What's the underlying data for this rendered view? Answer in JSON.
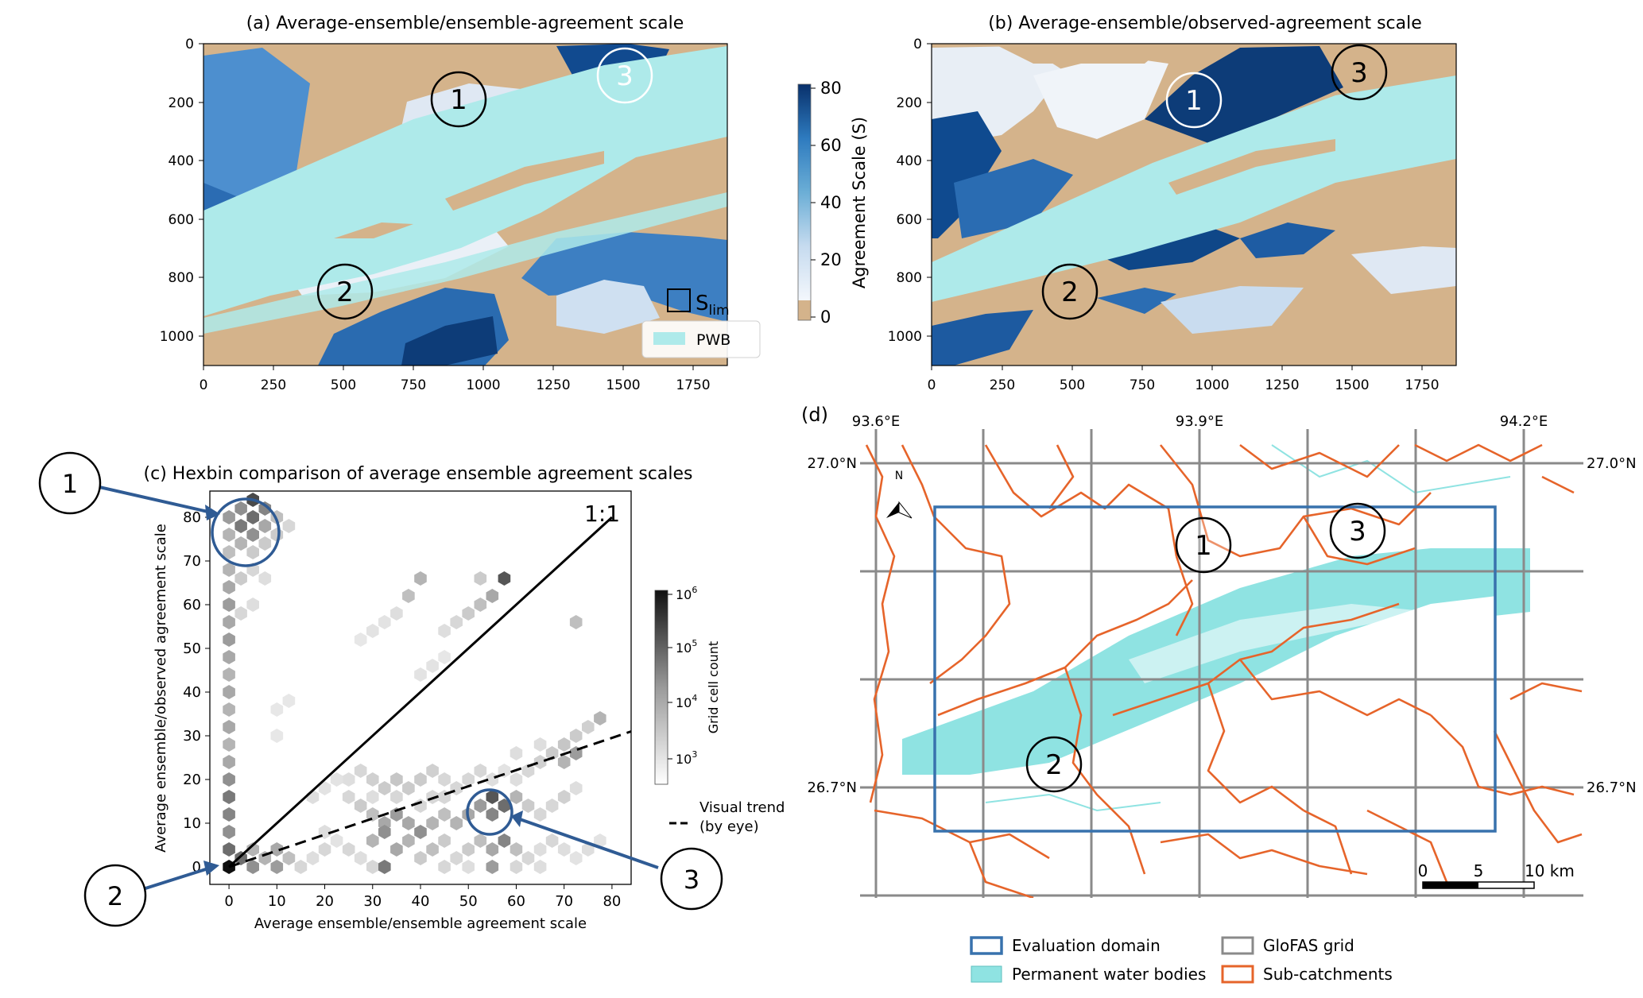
{
  "colors": {
    "pwb": "#aeeaea",
    "land": "#d4b38b",
    "blue_dark": "#0c3f7e",
    "blue_mid": "#4f8cc6",
    "blue_light": "#c7dcf0",
    "catchment": "#e6642a",
    "domain_box": "#3872ad",
    "grid": "#8a8a8a",
    "annot_blue": "#2f5b94"
  },
  "panel_a": {
    "title": "(a)  Average-ensemble/ensemble-agreement scale",
    "x_ticks": [
      "0",
      "250",
      "500",
      "750",
      "1000",
      "1250",
      "1500",
      "1750"
    ],
    "y_ticks": [
      "0",
      "200",
      "400",
      "600",
      "800",
      "1000"
    ],
    "markers": [
      "1",
      "2",
      "3"
    ],
    "slim_label": "S",
    "slim_sub": "lim",
    "legend_label": "PWB",
    "xlim": [
      0,
      1900
    ],
    "ylim": [
      1100,
      0
    ]
  },
  "panel_b": {
    "title": "(b)  Average-ensemble/observed-agreement scale",
    "x_ticks": [
      "0",
      "250",
      "500",
      "750",
      "1000",
      "1250",
      "1500",
      "1750"
    ],
    "y_ticks": [
      "0",
      "200",
      "400",
      "600",
      "800",
      "1000"
    ],
    "markers": [
      "1",
      "2",
      "3"
    ],
    "xlim": [
      0,
      1900
    ],
    "ylim": [
      1100,
      0
    ]
  },
  "colorbar_a": {
    "label": "Agreement Scale (S)",
    "ticks": [
      "80",
      "60",
      "40",
      "20",
      "0"
    ],
    "range": [
      0,
      80
    ]
  },
  "panel_c": {
    "title": "(c) Hexbin comparison of average ensemble agreement scales",
    "xlabel": "Average ensemble/ensemble agreement scale",
    "ylabel": "Average ensemble/observed agreement scale",
    "ticks": [
      "0",
      "10",
      "20",
      "30",
      "40",
      "50",
      "60",
      "70",
      "80"
    ],
    "one_to_one": "1:1",
    "trend_label_1": "Visual trend",
    "trend_label_2": "(by eye)",
    "colorbar_label": "Grid cell count",
    "colorbar_ticks": [
      "10",
      "10",
      "10",
      "10"
    ],
    "colorbar_exps": [
      "6",
      "5",
      "4",
      "3"
    ],
    "callouts": [
      "1",
      "2",
      "3"
    ]
  },
  "panel_d": {
    "label": "(d)",
    "lon_labels": [
      "93.6°E",
      "93.9°E",
      "94.2°E"
    ],
    "lat_labels": [
      "27.0°N",
      "27.0°N",
      "26.7°N",
      "26.7°N"
    ],
    "north": "N",
    "markers": [
      "1",
      "2",
      "3"
    ],
    "scale_labels": [
      "0",
      "5",
      "10 km"
    ],
    "legend": [
      "Evaluation domain",
      "GloFAS grid",
      "Permanent water bodies",
      "Sub-catchments"
    ]
  },
  "chart_data": [
    {
      "type": "heatmap",
      "title": "(a)  Average-ensemble/ensemble-agreement scale",
      "xlim": [
        0,
        1900
      ],
      "ylim": [
        1100,
        0
      ],
      "colorbar": {
        "label": "Agreement Scale (S)",
        "range": [
          0,
          80
        ]
      },
      "annotations": [
        "1",
        "2",
        "3",
        "S_lim",
        "PWB"
      ]
    },
    {
      "type": "heatmap",
      "title": "(b)  Average-ensemble/observed-agreement scale",
      "xlim": [
        0,
        1900
      ],
      "ylim": [
        1100,
        0
      ],
      "annotations": [
        "1",
        "2",
        "3"
      ]
    },
    {
      "type": "scatter",
      "title": "(c) Hexbin comparison of average ensemble agreement scales",
      "xlabel": "Average ensemble/ensemble agreement scale",
      "ylabel": "Average ensemble/observed agreement scale",
      "xlim": [
        -4,
        84
      ],
      "ylim": [
        -4,
        86
      ],
      "colorbar": {
        "label": "Grid cell count",
        "scale": "log",
        "range": [
          1000,
          1000000
        ]
      },
      "hexbins": [
        {
          "x": 0,
          "y": 0,
          "d": 1.0
        },
        {
          "x": 0,
          "y": 4,
          "d": 0.6
        },
        {
          "x": 0,
          "y": 8,
          "d": 0.45
        },
        {
          "x": 0,
          "y": 12,
          "d": 0.5
        },
        {
          "x": 0,
          "y": 16,
          "d": 0.55
        },
        {
          "x": 0,
          "y": 20,
          "d": 0.45
        },
        {
          "x": 0,
          "y": 24,
          "d": 0.35
        },
        {
          "x": 0,
          "y": 28,
          "d": 0.3
        },
        {
          "x": 0,
          "y": 32,
          "d": 0.35
        },
        {
          "x": 0,
          "y": 36,
          "d": 0.3
        },
        {
          "x": 0,
          "y": 40,
          "d": 0.35
        },
        {
          "x": 0,
          "y": 44,
          "d": 0.3
        },
        {
          "x": 0,
          "y": 48,
          "d": 0.35
        },
        {
          "x": 0,
          "y": 52,
          "d": 0.4
        },
        {
          "x": 0,
          "y": 56,
          "d": 0.35
        },
        {
          "x": 0,
          "y": 60,
          "d": 0.4
        },
        {
          "x": 0,
          "y": 64,
          "d": 0.35
        },
        {
          "x": 0,
          "y": 68,
          "d": 0.3
        },
        {
          "x": 0,
          "y": 72,
          "d": 0.25
        },
        {
          "x": 0,
          "y": 76,
          "d": 0.3
        },
        {
          "x": 0,
          "y": 80,
          "d": 0.4
        },
        {
          "x": 2.5,
          "y": 78,
          "d": 0.55
        },
        {
          "x": 5,
          "y": 80,
          "d": 0.6
        },
        {
          "x": 5,
          "y": 84,
          "d": 0.75
        },
        {
          "x": 7.5,
          "y": 82,
          "d": 0.5
        },
        {
          "x": 5,
          "y": 76,
          "d": 0.45
        },
        {
          "x": 2.5,
          "y": 74,
          "d": 0.3
        },
        {
          "x": 2.5,
          "y": 82,
          "d": 0.45
        },
        {
          "x": 7.5,
          "y": 78,
          "d": 0.35
        },
        {
          "x": 10,
          "y": 80,
          "d": 0.25
        },
        {
          "x": 10,
          "y": 76,
          "d": 0.2
        },
        {
          "x": 12.5,
          "y": 78,
          "d": 0.15
        },
        {
          "x": 7.5,
          "y": 74,
          "d": 0.2
        },
        {
          "x": 5,
          "y": 72,
          "d": 0.2
        },
        {
          "x": 5,
          "y": 68,
          "d": 0.15
        },
        {
          "x": 2.5,
          "y": 66,
          "d": 0.2
        },
        {
          "x": 2.5,
          "y": 58,
          "d": 0.15
        },
        {
          "x": 5,
          "y": 60,
          "d": 0.12
        },
        {
          "x": 7.5,
          "y": 66,
          "d": 0.12
        },
        {
          "x": 5,
          "y": 0,
          "d": 0.45
        },
        {
          "x": 7.5,
          "y": 2,
          "d": 0.3
        },
        {
          "x": 10,
          "y": 4,
          "d": 0.35
        },
        {
          "x": 10,
          "y": 0,
          "d": 0.4
        },
        {
          "x": 12.5,
          "y": 2,
          "d": 0.25
        },
        {
          "x": 5,
          "y": 4,
          "d": 0.3
        },
        {
          "x": 2.5,
          "y": 2,
          "d": 0.6
        },
        {
          "x": 15,
          "y": 0,
          "d": 0.15
        },
        {
          "x": 17.5,
          "y": 2,
          "d": 0.12
        },
        {
          "x": 20,
          "y": 4,
          "d": 0.15
        },
        {
          "x": 20,
          "y": 8,
          "d": 0.12
        },
        {
          "x": 22.5,
          "y": 6,
          "d": 0.1
        },
        {
          "x": 25,
          "y": 20,
          "d": 0.12
        },
        {
          "x": 27.5,
          "y": 22,
          "d": 0.15
        },
        {
          "x": 30,
          "y": 20,
          "d": 0.18
        },
        {
          "x": 32.5,
          "y": 18,
          "d": 0.2
        },
        {
          "x": 35,
          "y": 20,
          "d": 0.22
        },
        {
          "x": 37.5,
          "y": 18,
          "d": 0.2
        },
        {
          "x": 40,
          "y": 20,
          "d": 0.2
        },
        {
          "x": 42.5,
          "y": 22,
          "d": 0.18
        },
        {
          "x": 45,
          "y": 20,
          "d": 0.15
        },
        {
          "x": 47.5,
          "y": 18,
          "d": 0.15
        },
        {
          "x": 50,
          "y": 20,
          "d": 0.15
        },
        {
          "x": 52.5,
          "y": 22,
          "d": 0.15
        },
        {
          "x": 55,
          "y": 20,
          "d": 0.12
        },
        {
          "x": 57.5,
          "y": 22,
          "d": 0.1
        },
        {
          "x": 60,
          "y": 20,
          "d": 0.12
        },
        {
          "x": 62.5,
          "y": 22,
          "d": 0.15
        },
        {
          "x": 65,
          "y": 24,
          "d": 0.18
        },
        {
          "x": 67.5,
          "y": 26,
          "d": 0.2
        },
        {
          "x": 70,
          "y": 28,
          "d": 0.22
        },
        {
          "x": 72.5,
          "y": 30,
          "d": 0.2
        },
        {
          "x": 75,
          "y": 32,
          "d": 0.18
        },
        {
          "x": 77.5,
          "y": 34,
          "d": 0.3
        },
        {
          "x": 72.5,
          "y": 26,
          "d": 0.4
        },
        {
          "x": 70,
          "y": 24,
          "d": 0.3
        },
        {
          "x": 65,
          "y": 28,
          "d": 0.12
        },
        {
          "x": 60,
          "y": 26,
          "d": 0.12
        },
        {
          "x": 25,
          "y": 16,
          "d": 0.15
        },
        {
          "x": 27.5,
          "y": 14,
          "d": 0.2
        },
        {
          "x": 30,
          "y": 12,
          "d": 0.25
        },
        {
          "x": 32.5,
          "y": 10,
          "d": 0.35
        },
        {
          "x": 35,
          "y": 12,
          "d": 0.4
        },
        {
          "x": 37.5,
          "y": 10,
          "d": 0.35
        },
        {
          "x": 40,
          "y": 8,
          "d": 0.45
        },
        {
          "x": 42.5,
          "y": 10,
          "d": 0.3
        },
        {
          "x": 45,
          "y": 12,
          "d": 0.25
        },
        {
          "x": 47.5,
          "y": 10,
          "d": 0.3
        },
        {
          "x": 50,
          "y": 12,
          "d": 0.35
        },
        {
          "x": 52.5,
          "y": 14,
          "d": 0.4
        },
        {
          "x": 55,
          "y": 16,
          "d": 0.7
        },
        {
          "x": 57.5,
          "y": 14,
          "d": 0.6
        },
        {
          "x": 55,
          "y": 12,
          "d": 0.5
        },
        {
          "x": 60,
          "y": 16,
          "d": 0.3
        },
        {
          "x": 62.5,
          "y": 14,
          "d": 0.2
        },
        {
          "x": 65,
          "y": 12,
          "d": 0.15
        },
        {
          "x": 67.5,
          "y": 14,
          "d": 0.15
        },
        {
          "x": 70,
          "y": 16,
          "d": 0.18
        },
        {
          "x": 72.5,
          "y": 18,
          "d": 0.12
        },
        {
          "x": 30,
          "y": 6,
          "d": 0.3
        },
        {
          "x": 32.5,
          "y": 8,
          "d": 0.45
        },
        {
          "x": 35,
          "y": 4,
          "d": 0.35
        },
        {
          "x": 37.5,
          "y": 6,
          "d": 0.3
        },
        {
          "x": 40,
          "y": 2,
          "d": 0.2
        },
        {
          "x": 42.5,
          "y": 4,
          "d": 0.25
        },
        {
          "x": 45,
          "y": 6,
          "d": 0.2
        },
        {
          "x": 47.5,
          "y": 2,
          "d": 0.15
        },
        {
          "x": 50,
          "y": 4,
          "d": 0.2
        },
        {
          "x": 52.5,
          "y": 6,
          "d": 0.25
        },
        {
          "x": 55,
          "y": 4,
          "d": 0.35
        },
        {
          "x": 57.5,
          "y": 6,
          "d": 0.5
        },
        {
          "x": 55,
          "y": 0,
          "d": 0.4
        },
        {
          "x": 60,
          "y": 4,
          "d": 0.25
        },
        {
          "x": 62.5,
          "y": 2,
          "d": 0.15
        },
        {
          "x": 65,
          "y": 4,
          "d": 0.12
        },
        {
          "x": 67.5,
          "y": 6,
          "d": 0.15
        },
        {
          "x": 70,
          "y": 4,
          "d": 0.12
        },
        {
          "x": 72.5,
          "y": 2,
          "d": 0.1
        },
        {
          "x": 75,
          "y": 4,
          "d": 0.12
        },
        {
          "x": 77.5,
          "y": 6,
          "d": 0.1
        },
        {
          "x": 25,
          "y": 4,
          "d": 0.15
        },
        {
          "x": 27.5,
          "y": 2,
          "d": 0.12
        },
        {
          "x": 30,
          "y": 0,
          "d": 0.15
        },
        {
          "x": 32.5,
          "y": 0,
          "d": 0.55
        },
        {
          "x": 45,
          "y": 0,
          "d": 0.15
        },
        {
          "x": 50,
          "y": 0,
          "d": 0.12
        },
        {
          "x": 60,
          "y": 0,
          "d": 0.15
        },
        {
          "x": 65,
          "y": 0,
          "d": 0.12
        },
        {
          "x": 40,
          "y": 14,
          "d": 0.15
        },
        {
          "x": 42.5,
          "y": 16,
          "d": 0.15
        },
        {
          "x": 45,
          "y": 16,
          "d": 0.15
        },
        {
          "x": 35,
          "y": 16,
          "d": 0.15
        },
        {
          "x": 30,
          "y": 16,
          "d": 0.12
        },
        {
          "x": 17.5,
          "y": 16,
          "d": 0.12
        },
        {
          "x": 20,
          "y": 18,
          "d": 0.1
        },
        {
          "x": 22.5,
          "y": 20,
          "d": 0.1
        },
        {
          "x": 57.5,
          "y": 66,
          "d": 0.7
        },
        {
          "x": 55,
          "y": 62,
          "d": 0.35
        },
        {
          "x": 52.5,
          "y": 60,
          "d": 0.25
        },
        {
          "x": 50,
          "y": 58,
          "d": 0.2
        },
        {
          "x": 47.5,
          "y": 56,
          "d": 0.15
        },
        {
          "x": 45,
          "y": 54,
          "d": 0.12
        },
        {
          "x": 52.5,
          "y": 66,
          "d": 0.2
        },
        {
          "x": 72.5,
          "y": 56,
          "d": 0.25
        },
        {
          "x": 37.5,
          "y": 62,
          "d": 0.25
        },
        {
          "x": 35,
          "y": 58,
          "d": 0.12
        },
        {
          "x": 32.5,
          "y": 56,
          "d": 0.1
        },
        {
          "x": 30,
          "y": 54,
          "d": 0.1
        },
        {
          "x": 27.5,
          "y": 52,
          "d": 0.08
        },
        {
          "x": 40,
          "y": 66,
          "d": 0.3
        },
        {
          "x": 40,
          "y": 44,
          "d": 0.1
        },
        {
          "x": 42.5,
          "y": 46,
          "d": 0.1
        },
        {
          "x": 45,
          "y": 48,
          "d": 0.08
        },
        {
          "x": 10,
          "y": 36,
          "d": 0.08
        },
        {
          "x": 12.5,
          "y": 38,
          "d": 0.08
        },
        {
          "x": 10,
          "y": 30,
          "d": 0.08
        }
      ],
      "lines": [
        {
          "name": "1:1",
          "x": [
            0,
            80
          ],
          "y": [
            0,
            80
          ]
        },
        {
          "name": "Visual trend (by eye)",
          "x": [
            0,
            84
          ],
          "y": [
            0,
            31
          ]
        }
      ],
      "annotations": [
        "1",
        "2",
        "3"
      ]
    },
    {
      "type": "map",
      "title": "(d)",
      "lon_range": [
        "93.6°E",
        "94.2°E"
      ],
      "lat_range": [
        "26.7°N",
        "27.0°N"
      ],
      "legend": [
        "Evaluation domain",
        "GloFAS grid",
        "Permanent water bodies",
        "Sub-catchments"
      ],
      "annotations": [
        "1",
        "2",
        "3"
      ]
    }
  ]
}
